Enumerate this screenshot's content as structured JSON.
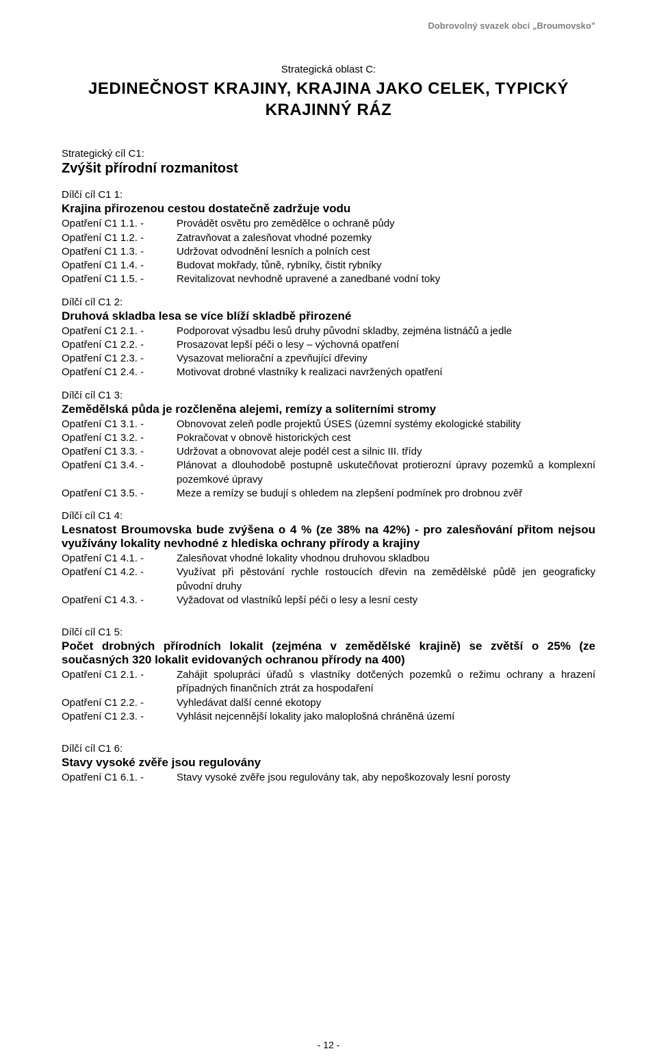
{
  "header": "Dobrovolný svazek obcí „Broumovsko\"",
  "area_label": "Strategická oblast C:",
  "main_title": "JEDINEČNOST KRAJINY, KRAJINA JAKO CELEK, TYPICKÝ KRAJINNÝ RÁZ",
  "goal_label": "Strategický cíl C1:",
  "goal_title": "Zvýšit přírodní rozmanitost",
  "sections": [
    {
      "label": "Dílčí cíl C1 1:",
      "title": "Krajina přirozenou cestou dostatečně zadržuje vodu",
      "measures": [
        {
          "k": "Opatření C1 1.1. -",
          "v": "Provádět osvětu pro zemědělce o  ochraně půdy"
        },
        {
          "k": "Opatření C1 1.2. -",
          "v": "Zatravňovat a zalesňovat vhodné pozemky"
        },
        {
          "k": "Opatření C1 1.3. -",
          "v": "Udržovat odvodnění lesních a polních cest"
        },
        {
          "k": "Opatření C1 1.4. -",
          "v": "Budovat mokřady, tůně, rybníky, čistit rybníky"
        },
        {
          "k": "Opatření C1 1.5. -",
          "v": "Revitalizovat nevhodně upravené a zanedbané vodní toky"
        }
      ]
    },
    {
      "label": "Dílčí cíl C1 2:",
      "title": "Druhová skladba lesa se více blíží skladbě přirozené",
      "measures": [
        {
          "k": "Opatření C1 2.1. -",
          "v": "Podporovat výsadbu lesů druhy původní skladby, zejména listnáčů a jedle"
        },
        {
          "k": "Opatření C1 2.2. -",
          "v": "Prosazovat lepší péči o lesy – výchovná opatření"
        },
        {
          "k": "Opatření C1 2.3. -",
          "v": "Vysazovat meliorační a zpevňující dřeviny"
        },
        {
          "k": "Opatření C1 2.4. -",
          "v": "Motivovat drobné vlastníky k realizaci navržených opatření"
        }
      ]
    },
    {
      "label": "Dílčí cíl C1 3:",
      "title": "Zemědělská půda je rozčleněna alejemi, remízy a soliterními stromy",
      "measures": [
        {
          "k": "Opatření C1 3.1. -",
          "v": "Obnovovat zeleň podle projektů ÚSES  (územní systémy ekologické stability"
        },
        {
          "k": "Opatření C1 3.2. -",
          "v": "Pokračovat v obnově historických cest"
        },
        {
          "k": "Opatření C1 3.3. -",
          "v": "Udržovat a obnovovat aleje podél cest a silnic III. třídy"
        },
        {
          "k": "Opatření C1 3.4. -",
          "v": "Plánovat a dlouhodobě postupně uskutečňovat protierozní úpravy pozemků a komplexní pozemkové úpravy"
        },
        {
          "k": "Opatření C1 3.5. -",
          "v": "Meze a remízy se budují s ohledem na zlepšení podmínek pro drobnou zvěř"
        }
      ]
    },
    {
      "label": "Dílčí cíl C1 4:",
      "title": "Lesnatost Broumovska bude zvýšena o 4 % (ze 38% na 42%) - pro zalesňování přitom nejsou využívány lokality nevhodné z hlediska ochrany přírody a krajiny",
      "measures": [
        {
          "k": "Opatření C1 4.1. -",
          "v": "Zalesňovat vhodné lokality vhodnou druhovou skladbou"
        },
        {
          "k": "Opatření C1 4.2. -",
          "v": "Využívat při pěstování rychle rostoucích dřevin na zemědělské půdě jen geograficky původní druhy"
        },
        {
          "k": "Opatření C1 4.3. -",
          "v": "Vyžadovat od vlastníků lepší péči o lesy a lesní cesty"
        }
      ]
    },
    {
      "label": "Dílčí cíl C1 5:",
      "title": "Počet drobných přírodních lokalit (zejména v zemědělské krajině) se zvětší o  25% (ze současných 320 lokalit evidovaných ochranou přírody na 400)",
      "measures": [
        {
          "k": "Opatření C1 2.1. -",
          "v": "Zahájit spolupráci úřadů s vlastníky dotčených pozemků o režimu ochrany a hrazení případných finančních ztrát za hospodaření"
        },
        {
          "k": "Opatření C1 2.2. -",
          "v": "Vyhledávat další cenné ekotopy"
        },
        {
          "k": "Opatření C1 2.3. -",
          "v": "Vyhlásit nejcennější lokality jako maloplošná chráněná území"
        }
      ]
    },
    {
      "label": "Dílčí cíl C1 6:",
      "title": "Stavy vysoké zvěře jsou regulovány",
      "measures": [
        {
          "k": "Opatření C1 6.1. -",
          "v": "Stavy vysoké zvěře jsou regulovány tak, aby nepoškozovaly lesní porosty"
        }
      ]
    }
  ],
  "footer": "- 12 -"
}
